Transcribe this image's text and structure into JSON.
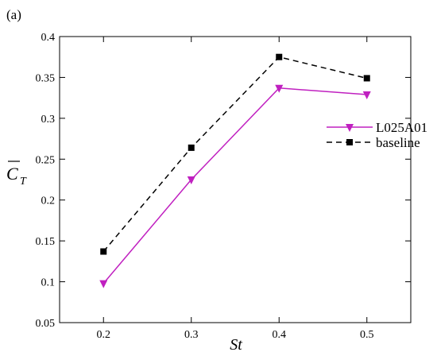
{
  "panel_label": "(a)",
  "chart_data": {
    "type": "line",
    "xlabel": "St",
    "ylabel": {
      "main": "C",
      "sub": "T",
      "overline": true
    },
    "x": [
      0.2,
      0.3,
      0.4,
      0.5
    ],
    "xticks": [
      "0.2",
      "0.3",
      "0.4",
      "0.5"
    ],
    "xlim": [
      0.15,
      0.55
    ],
    "yticks": [
      "0.05",
      "0.1",
      "0.15",
      "0.2",
      "0.25",
      "0.3",
      "0.35",
      "0.4"
    ],
    "ylim": [
      0.05,
      0.4
    ],
    "grid": false,
    "legend_position": "right",
    "series": [
      {
        "name": "L025A01",
        "values": [
          0.098,
          0.225,
          0.337,
          0.329
        ],
        "color": "#c020c0",
        "dash": "solid",
        "marker": "triangle-down"
      },
      {
        "name": "baseline",
        "values": [
          0.137,
          0.264,
          0.375,
          0.349
        ],
        "color": "#000000",
        "dash": "dashed",
        "marker": "square"
      }
    ]
  }
}
